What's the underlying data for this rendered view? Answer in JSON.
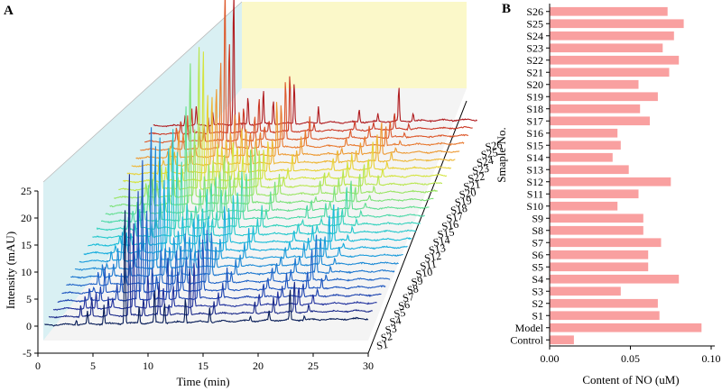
{
  "chart_data": [
    {
      "panel": "A",
      "type": "line",
      "title": "",
      "xlabel": "Time (min)",
      "ylabel": "Intensity (mAU)",
      "xlim": [
        0,
        30
      ],
      "ylim": [
        -5,
        25
      ],
      "x_ticks": [
        0,
        5,
        10,
        15,
        20,
        25,
        30
      ],
      "y_ticks": [
        -5,
        0,
        5,
        10,
        15,
        20,
        25
      ],
      "series_names": [
        "S1",
        "S2",
        "S3",
        "S4",
        "S5",
        "S6",
        "S7",
        "S8",
        "S9",
        "S10",
        "S11",
        "S12",
        "S13",
        "S14",
        "S15",
        "S16",
        "S17",
        "S18",
        "S19",
        "S20",
        "S21",
        "S22",
        "S23",
        "S24",
        "S25",
        "S26"
      ],
      "peaks": [
        {
          "t": 3.5,
          "h": 2.0
        },
        {
          "t": 4.5,
          "h": 4.0
        },
        {
          "t": 6.0,
          "h": 3.0
        },
        {
          "t": 7.9,
          "h": 24.0
        },
        {
          "t": 9.2,
          "h": 5.5
        },
        {
          "t": 10.6,
          "h": 6.5
        },
        {
          "t": 11.5,
          "h": 4.5
        },
        {
          "t": 13.4,
          "h": 8.5
        },
        {
          "t": 15.6,
          "h": 3.0
        },
        {
          "t": 19.3,
          "h": 2.0
        },
        {
          "t": 21.0,
          "h": 2.2
        },
        {
          "t": 22.9,
          "h": 5.5
        },
        {
          "t": 24.2,
          "h": 1.5
        }
      ],
      "colors": [
        "#081d58",
        "#1b2a8a",
        "#24349f",
        "#1e44b0",
        "#1d55bf",
        "#1f64c8",
        "#1e78d0",
        "#1d8ad6",
        "#1a9bdb",
        "#16acdd",
        "#19bcd8",
        "#26c8cc",
        "#35d2bd",
        "#4cd9a8",
        "#63de91",
        "#7de27a",
        "#9be565",
        "#b9e650",
        "#d4e43f",
        "#e8d23a",
        "#eeb737",
        "#ed9a34",
        "#e87a30",
        "#dd592c",
        "#cc3a27",
        "#b01c20"
      ]
    },
    {
      "panel": "B",
      "type": "bar",
      "orientation": "horizontal",
      "title": "",
      "xlabel": "Content of NO (uM)",
      "ylabel": "Smaple No.",
      "xlim": [
        0,
        0.1
      ],
      "x_ticks": [
        "0.00",
        "0.05",
        "0.10"
      ],
      "categories": [
        "S26",
        "S25",
        "S24",
        "S23",
        "S22",
        "S21",
        "S20",
        "S19",
        "S18",
        "S17",
        "S16",
        "S15",
        "S14",
        "S13",
        "S12",
        "S11",
        "S10",
        "S9",
        "S8",
        "S7",
        "S6",
        "S5",
        "S4",
        "S3",
        "S2",
        "S1",
        "Model",
        "Control"
      ],
      "values": [
        0.073,
        0.083,
        0.077,
        0.07,
        0.08,
        0.074,
        0.055,
        0.067,
        0.056,
        0.062,
        0.042,
        0.044,
        0.039,
        0.049,
        0.075,
        0.055,
        0.042,
        0.058,
        0.058,
        0.069,
        0.061,
        0.061,
        0.08,
        0.044,
        0.067,
        0.068,
        0.094,
        0.015
      ],
      "bar_color": "#f9a0a0"
    }
  ],
  "panels": {
    "a_label": "A",
    "b_label": "B"
  }
}
